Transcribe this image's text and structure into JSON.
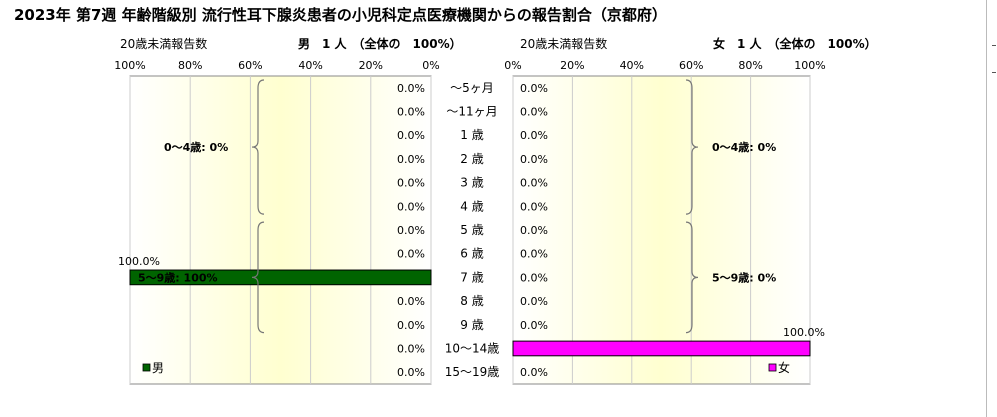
{
  "title": "2023年 第7週 年齢階級別 流行性耳下腺炎患者の小児科定点医療機関からの報告割合（京都府）",
  "header": {
    "left_under20": "20歳未満報告数",
    "left_count": "男　1 人　（全体の　100%）",
    "right_under20": "20歳未満報告数",
    "right_count": "女　1 人　（全体の　100%）"
  },
  "colors": {
    "male": "#006400",
    "female": "#ff00ff",
    "panel_bg": "#ffffe0"
  },
  "chart_data": {
    "type": "bar",
    "orientation": "horizontal-butterfly",
    "categories": [
      "～5ヶ月",
      "～11ヶ月",
      "1 歳",
      "2 歳",
      "3 歳",
      "4 歳",
      "5 歳",
      "6 歳",
      "7 歳",
      "8 歳",
      "9 歳",
      "10～14歳",
      "15～19歳"
    ],
    "x_ticks_male": [
      "100%",
      "80%",
      "60%",
      "40%",
      "20%",
      "0%"
    ],
    "x_ticks_female": [
      "0%",
      "20%",
      "40%",
      "60%",
      "80%",
      "100%"
    ],
    "xlim": [
      0,
      100
    ],
    "series": [
      {
        "name": "男",
        "values": [
          0,
          0,
          0,
          0,
          0,
          0,
          0,
          0,
          100,
          0,
          0,
          0,
          0
        ],
        "labels": [
          "0.0%",
          "0.0%",
          "0.0%",
          "0.0%",
          "0.0%",
          "0.0%",
          "0.0%",
          "0.0%",
          "100.0%",
          "0.0%",
          "0.0%",
          "0.0%",
          "0.0%"
        ]
      },
      {
        "name": "女",
        "values": [
          0,
          0,
          0,
          0,
          0,
          0,
          0,
          0,
          0,
          0,
          0,
          100,
          0
        ],
        "labels": [
          "0.0%",
          "0.0%",
          "0.0%",
          "0.0%",
          "0.0%",
          "0.0%",
          "0.0%",
          "0.0%",
          "0.0%",
          "0.0%",
          "0.0%",
          "100.0%",
          "0.0%"
        ]
      }
    ],
    "annotations": {
      "male_0_4": "0～4歳: 0%",
      "male_5_9": "5～9歳: 100%",
      "female_0_4": "0～4歳: 0%",
      "female_5_9": "5～9歳: 0%"
    },
    "grid": true,
    "legend": "bottom"
  }
}
